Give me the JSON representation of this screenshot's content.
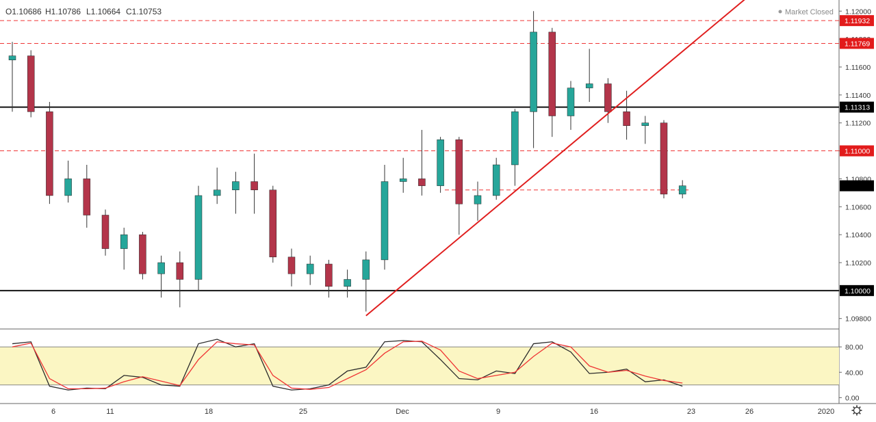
{
  "ohlc_header": {
    "open": "O1.10686",
    "high": "H1.10786",
    "low": "L1.10664",
    "close": "C1.10753"
  },
  "market_status": "Market Closed",
  "colors": {
    "up_candle": "#26a69a",
    "down_candle": "#b3354a",
    "level_line": "#ef3434",
    "trend_line": "#e01e1e",
    "support_line": "#111111",
    "stoch_k": "#2b2b2b",
    "stoch_d": "#ef3434",
    "stoch_band": "#fbf6c3",
    "axis_text": "#333333"
  },
  "chart_data": [
    {
      "type": "candlestick",
      "title": "",
      "y_axis": {
        "range": [
          1.0973,
          1.1206
        ],
        "ticks": [
          "1.12000",
          "1.11800",
          "1.11600",
          "1.11400",
          "1.11200",
          "1.11000",
          "1.10800",
          "1.10600",
          "1.10400",
          "1.10200",
          "1.10000",
          "1.09800"
        ]
      },
      "x_axis": {
        "ticks": [
          "6",
          "11",
          "18",
          "25",
          "Dec",
          "9",
          "16",
          "23",
          "26",
          "2020"
        ]
      },
      "horizontal_levels": [
        {
          "value": 1.11932,
          "label": "1.11932",
          "style": "dashed",
          "color": "red"
        },
        {
          "value": 1.11769,
          "label": "1.11769",
          "style": "dashed",
          "color": "red"
        },
        {
          "value": 1.11313,
          "label": "1.11313",
          "style": "solid",
          "color": "black"
        },
        {
          "value": 1.11,
          "label": "1.11000",
          "style": "dashed",
          "color": "red"
        },
        {
          "value": 1.1,
          "label": "1.10000",
          "style": "solid",
          "color": "black"
        },
        {
          "value": 1.1072,
          "label": "",
          "style": "dashed",
          "color": "red"
        }
      ],
      "last_price_label": "1.10753",
      "trendline": {
        "from_date": "Nov 29",
        "from_value": 1.0982,
        "to_date": "Dec 24",
        "to_value": 1.121
      },
      "candles": [
        {
          "date": "Nov 4",
          "o": 1.1165,
          "h": 1.1178,
          "l": 1.1128,
          "c": 1.1168
        },
        {
          "date": "Nov 5",
          "o": 1.1168,
          "h": 1.1172,
          "l": 1.1124,
          "c": 1.1128
        },
        {
          "date": "Nov 6",
          "o": 1.1128,
          "h": 1.1135,
          "l": 1.1062,
          "c": 1.1068
        },
        {
          "date": "Nov 7",
          "o": 1.1068,
          "h": 1.1093,
          "l": 1.1063,
          "c": 1.108
        },
        {
          "date": "Nov 8",
          "o": 1.108,
          "h": 1.109,
          "l": 1.1045,
          "c": 1.1054
        },
        {
          "date": "Nov 11",
          "o": 1.1054,
          "h": 1.1058,
          "l": 1.1025,
          "c": 1.103
        },
        {
          "date": "Nov 12",
          "o": 1.103,
          "h": 1.1045,
          "l": 1.1015,
          "c": 1.104
        },
        {
          "date": "Nov 13",
          "o": 1.104,
          "h": 1.1042,
          "l": 1.1008,
          "c": 1.1012
        },
        {
          "date": "Nov 14",
          "o": 1.1012,
          "h": 1.1025,
          "l": 1.0995,
          "c": 1.102
        },
        {
          "date": "Nov 15",
          "o": 1.102,
          "h": 1.1028,
          "l": 1.0988,
          "c": 1.1008
        },
        {
          "date": "Nov 18",
          "o": 1.1008,
          "h": 1.1075,
          "l": 1.1,
          "c": 1.1068
        },
        {
          "date": "Nov 19",
          "o": 1.1068,
          "h": 1.1088,
          "l": 1.1062,
          "c": 1.1072
        },
        {
          "date": "Nov 20",
          "o": 1.1072,
          "h": 1.1085,
          "l": 1.1055,
          "c": 1.1078
        },
        {
          "date": "Nov 21",
          "o": 1.1078,
          "h": 1.1098,
          "l": 1.1055,
          "c": 1.1072
        },
        {
          "date": "Nov 22",
          "o": 1.1072,
          "h": 1.1075,
          "l": 1.102,
          "c": 1.1024
        },
        {
          "date": "Nov 25",
          "o": 1.1024,
          "h": 1.103,
          "l": 1.1003,
          "c": 1.1012
        },
        {
          "date": "Nov 26",
          "o": 1.1012,
          "h": 1.1025,
          "l": 1.1004,
          "c": 1.1019
        },
        {
          "date": "Nov 27",
          "o": 1.1019,
          "h": 1.1022,
          "l": 1.0995,
          "c": 1.1003
        },
        {
          "date": "Nov 28",
          "o": 1.1003,
          "h": 1.1015,
          "l": 1.0995,
          "c": 1.1008
        },
        {
          "date": "Nov 29",
          "o": 1.1008,
          "h": 1.1028,
          "l": 1.0985,
          "c": 1.1022
        },
        {
          "date": "Dec 2",
          "o": 1.1022,
          "h": 1.109,
          "l": 1.1015,
          "c": 1.1078
        },
        {
          "date": "Dec 3",
          "o": 1.1078,
          "h": 1.1095,
          "l": 1.107,
          "c": 1.108
        },
        {
          "date": "Dec 4",
          "o": 1.108,
          "h": 1.1115,
          "l": 1.1068,
          "c": 1.1075
        },
        {
          "date": "Dec 5",
          "o": 1.1075,
          "h": 1.111,
          "l": 1.107,
          "c": 1.1108
        },
        {
          "date": "Dec 6",
          "o": 1.1108,
          "h": 1.111,
          "l": 1.104,
          "c": 1.1062
        },
        {
          "date": "Dec 9",
          "o": 1.1062,
          "h": 1.1078,
          "l": 1.105,
          "c": 1.1068
        },
        {
          "date": "Dec 10",
          "o": 1.1068,
          "h": 1.1095,
          "l": 1.1065,
          "c": 1.109
        },
        {
          "date": "Dec 11",
          "o": 1.109,
          "h": 1.113,
          "l": 1.1075,
          "c": 1.1128
        },
        {
          "date": "Dec 12",
          "o": 1.1128,
          "h": 1.12,
          "l": 1.1102,
          "c": 1.1185
        },
        {
          "date": "Dec 13",
          "o": 1.1185,
          "h": 1.1188,
          "l": 1.111,
          "c": 1.1125
        },
        {
          "date": "Dec 16",
          "o": 1.1125,
          "h": 1.115,
          "l": 1.1115,
          "c": 1.1145
        },
        {
          "date": "Dec 17",
          "o": 1.1145,
          "h": 1.1173,
          "l": 1.1135,
          "c": 1.1148
        },
        {
          "date": "Dec 18",
          "o": 1.1148,
          "h": 1.1152,
          "l": 1.112,
          "c": 1.1128
        },
        {
          "date": "Dec 19",
          "o": 1.1128,
          "h": 1.1143,
          "l": 1.1108,
          "c": 1.1118
        },
        {
          "date": "Dec 20",
          "o": 1.1118,
          "h": 1.1125,
          "l": 1.1105,
          "c": 1.112
        },
        {
          "date": "Dec 23",
          "o": 1.112,
          "h": 1.1122,
          "l": 1.1066,
          "c": 1.1069
        },
        {
          "date": "Dec 24",
          "o": 1.1069,
          "h": 1.1079,
          "l": 1.1066,
          "c": 1.1075
        }
      ]
    },
    {
      "type": "line",
      "title": "",
      "y_axis": {
        "range": [
          -5,
          105
        ],
        "ticks": [
          "80.00",
          "40.00",
          "0.00"
        ]
      },
      "band": [
        20,
        80
      ],
      "x": [
        "Nov 4",
        "Nov 5",
        "Nov 6",
        "Nov 7",
        "Nov 8",
        "Nov 11",
        "Nov 12",
        "Nov 13",
        "Nov 14",
        "Nov 15",
        "Nov 18",
        "Nov 19",
        "Nov 20",
        "Nov 21",
        "Nov 22",
        "Nov 25",
        "Nov 26",
        "Nov 27",
        "Nov 28",
        "Nov 29",
        "Dec 2",
        "Dec 3",
        "Dec 4",
        "Dec 5",
        "Dec 6",
        "Dec 9",
        "Dec 10",
        "Dec 11",
        "Dec 12",
        "Dec 13",
        "Dec 16",
        "Dec 17",
        "Dec 18",
        "Dec 19",
        "Dec 20",
        "Dec 23",
        "Dec 24"
      ],
      "series": [
        {
          "values": [
            85,
            88,
            18,
            12,
            15,
            14,
            35,
            32,
            20,
            18,
            85,
            92,
            80,
            85,
            18,
            12,
            14,
            20,
            42,
            48,
            88,
            90,
            88,
            60,
            30,
            28,
            42,
            38,
            85,
            88,
            72,
            38,
            40,
            45,
            25,
            28,
            18
          ]
        },
        {
          "values": [
            80,
            86,
            30,
            14,
            14,
            15,
            25,
            33,
            26,
            19,
            60,
            88,
            85,
            83,
            35,
            15,
            13,
            16,
            30,
            44,
            70,
            88,
            89,
            75,
            42,
            30,
            35,
            40,
            65,
            86,
            80,
            50,
            40,
            43,
            34,
            27,
            23
          ]
        }
      ]
    }
  ]
}
